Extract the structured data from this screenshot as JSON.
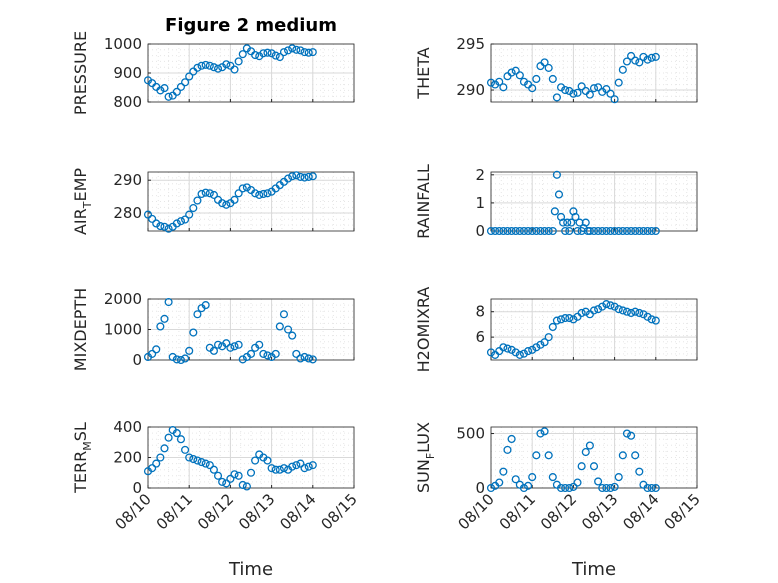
{
  "figure": {
    "title": "Figure 2 medium",
    "xlabel": "Time"
  },
  "colors": {
    "marker": "#0072BD",
    "axis": "#262626",
    "grid": "#d9d9d9"
  },
  "chart_data": [
    {
      "type": "scatter",
      "name": "PRESSURE",
      "ylabel": {
        "main": "PRESSURE",
        "sub": ""
      },
      "ylim": [
        800,
        1000
      ],
      "yticks": [
        "800",
        "900",
        "1000"
      ],
      "ytick_values": [
        800,
        900,
        1000
      ],
      "xticks": [],
      "xlim": [
        0,
        5
      ],
      "grid": true,
      "x": [
        0.0,
        0.1,
        0.2,
        0.3,
        0.4,
        0.5,
        0.6,
        0.7,
        0.8,
        0.9,
        1.0,
        1.1,
        1.2,
        1.3,
        1.4,
        1.5,
        1.6,
        1.7,
        1.8,
        1.9,
        2.0,
        2.1,
        2.2,
        2.3,
        2.4,
        2.5,
        2.6,
        2.7,
        2.8,
        2.9,
        3.0,
        3.1,
        3.2,
        3.3,
        3.4,
        3.5,
        3.6,
        3.7,
        3.8,
        3.9,
        4.0
      ],
      "y": [
        875,
        865,
        852,
        840,
        848,
        818,
        822,
        835,
        852,
        868,
        888,
        905,
        918,
        925,
        928,
        925,
        920,
        915,
        920,
        930,
        925,
        912,
        940,
        965,
        985,
        975,
        962,
        958,
        968,
        970,
        968,
        960,
        955,
        972,
        978,
        985,
        980,
        978,
        972,
        970,
        972
      ]
    },
    {
      "type": "scatter",
      "name": "THETA",
      "ylabel": {
        "main": "THETA",
        "sub": ""
      },
      "ylim": [
        288.7,
        295.0
      ],
      "yticks": [
        "290",
        "295"
      ],
      "ytick_values": [
        290,
        295
      ],
      "xticks": [],
      "xlim": [
        0,
        5
      ],
      "grid": true,
      "x": [
        0.0,
        0.1,
        0.2,
        0.3,
        0.4,
        0.5,
        0.6,
        0.7,
        0.8,
        0.9,
        1.0,
        1.1,
        1.2,
        1.3,
        1.4,
        1.5,
        1.6,
        1.7,
        1.8,
        1.9,
        2.0,
        2.1,
        2.2,
        2.3,
        2.4,
        2.5,
        2.6,
        2.7,
        2.8,
        2.9,
        3.0,
        3.1,
        3.2,
        3.3,
        3.4,
        3.5,
        3.6,
        3.7,
        3.8,
        3.9,
        4.0
      ],
      "y": [
        290.8,
        290.6,
        290.9,
        290.3,
        291.5,
        291.9,
        292.1,
        291.6,
        290.9,
        290.6,
        290.2,
        291.2,
        292.6,
        293.0,
        292.4,
        291.2,
        289.2,
        290.3,
        290.0,
        289.9,
        289.6,
        289.7,
        290.4,
        289.9,
        289.5,
        290.2,
        290.3,
        289.8,
        290.1,
        289.6,
        289.0,
        290.8,
        292.2,
        293.1,
        293.7,
        293.2,
        293.0,
        293.6,
        293.3,
        293.5,
        293.6
      ]
    },
    {
      "type": "scatter",
      "name": "AIR_TEMP",
      "ylabel": {
        "main": "AIR",
        "sub": "T",
        "rest": "EMP"
      },
      "ylim": [
        274.5,
        292.5
      ],
      "yticks": [
        "280",
        "290"
      ],
      "ytick_values": [
        280,
        290
      ],
      "xticks": [],
      "xlim": [
        0,
        5
      ],
      "grid": true,
      "x": [
        0.0,
        0.1,
        0.2,
        0.3,
        0.4,
        0.5,
        0.6,
        0.7,
        0.8,
        0.9,
        1.0,
        1.1,
        1.2,
        1.3,
        1.4,
        1.5,
        1.6,
        1.7,
        1.8,
        1.9,
        2.0,
        2.1,
        2.2,
        2.3,
        2.4,
        2.5,
        2.6,
        2.7,
        2.8,
        2.9,
        3.0,
        3.1,
        3.2,
        3.3,
        3.4,
        3.5,
        3.6,
        3.7,
        3.8,
        3.9,
        4.0
      ],
      "y": [
        279.5,
        278.2,
        276.8,
        276.0,
        275.8,
        275.2,
        275.8,
        276.8,
        277.5,
        278.0,
        279.5,
        281.5,
        283.8,
        285.8,
        286.2,
        286.0,
        285.5,
        284.0,
        283.0,
        282.5,
        283.0,
        284.0,
        286.0,
        287.5,
        287.8,
        287.0,
        286.0,
        285.5,
        285.8,
        286.0,
        286.5,
        287.5,
        288.5,
        289.5,
        290.5,
        291.2,
        291.5,
        291.0,
        290.8,
        291.0,
        291.2
      ]
    },
    {
      "type": "scatter",
      "name": "RAINFALL",
      "ylabel": {
        "main": "RAINFALL",
        "sub": ""
      },
      "ylim": [
        0,
        2.1
      ],
      "yticks": [
        "0",
        "1",
        "2"
      ],
      "ytick_values": [
        0,
        1,
        2
      ],
      "xticks": [],
      "xlim": [
        0,
        5
      ],
      "grid": true,
      "x": [
        0.0,
        0.1,
        0.2,
        0.3,
        0.4,
        0.5,
        0.6,
        0.7,
        0.8,
        0.9,
        1.0,
        1.1,
        1.2,
        1.3,
        1.4,
        1.5,
        1.55,
        1.6,
        1.65,
        1.7,
        1.75,
        1.8,
        1.85,
        1.9,
        1.95,
        2.0,
        2.05,
        2.1,
        2.15,
        2.2,
        2.25,
        2.3,
        2.35,
        2.4,
        2.5,
        2.6,
        2.7,
        2.8,
        2.9,
        3.0,
        3.1,
        3.2,
        3.3,
        3.4,
        3.5,
        3.6,
        3.7,
        3.8,
        3.9,
        4.0
      ],
      "y": [
        0,
        0,
        0,
        0,
        0,
        0,
        0,
        0,
        0,
        0,
        0,
        0,
        0,
        0,
        0,
        0,
        0.7,
        2.0,
        1.3,
        0.5,
        0.3,
        0,
        0.3,
        0,
        0.3,
        0.7,
        0.5,
        0,
        0.3,
        0,
        0.1,
        0.3,
        0,
        0,
        0,
        0,
        0,
        0,
        0,
        0,
        0,
        0,
        0,
        0,
        0,
        0,
        0,
        0,
        0,
        0
      ]
    },
    {
      "type": "scatter",
      "name": "MIXDEPTH",
      "ylabel": {
        "main": "MIXDEPTH",
        "sub": ""
      },
      "ylim": [
        0,
        2000
      ],
      "yticks": [
        "0",
        "1000",
        "2000"
      ],
      "ytick_values": [
        0,
        1000,
        2000
      ],
      "xticks": [],
      "xlim": [
        0,
        5
      ],
      "grid": true,
      "x": [
        0.0,
        0.1,
        0.2,
        0.3,
        0.4,
        0.5,
        0.6,
        0.7,
        0.8,
        0.9,
        1.0,
        1.1,
        1.2,
        1.3,
        1.4,
        1.5,
        1.6,
        1.7,
        1.8,
        1.9,
        2.0,
        2.1,
        2.2,
        2.3,
        2.4,
        2.5,
        2.6,
        2.7,
        2.8,
        2.9,
        3.0,
        3.1,
        3.2,
        3.3,
        3.4,
        3.5,
        3.6,
        3.7,
        3.8,
        3.9,
        4.0
      ],
      "y": [
        100,
        200,
        350,
        1100,
        1350,
        1900,
        100,
        20,
        0,
        50,
        300,
        900,
        1500,
        1700,
        1800,
        400,
        300,
        500,
        450,
        550,
        400,
        450,
        500,
        20,
        100,
        200,
        400,
        500,
        200,
        150,
        100,
        200,
        1100,
        1500,
        1000,
        800,
        200,
        50,
        100,
        50,
        20
      ]
    },
    {
      "type": "scatter",
      "name": "H2OMIXRA",
      "ylabel": {
        "main": "H2OMIXRA",
        "sub": ""
      },
      "ylim": [
        4.2,
        9.0
      ],
      "yticks": [
        "6",
        "8"
      ],
      "ytick_values": [
        6,
        8
      ],
      "xticks": [],
      "xlim": [
        0,
        5
      ],
      "grid": true,
      "x": [
        0.0,
        0.1,
        0.2,
        0.3,
        0.4,
        0.5,
        0.6,
        0.7,
        0.8,
        0.9,
        1.0,
        1.1,
        1.2,
        1.3,
        1.4,
        1.5,
        1.6,
        1.7,
        1.8,
        1.9,
        2.0,
        2.1,
        2.2,
        2.3,
        2.4,
        2.5,
        2.6,
        2.7,
        2.8,
        2.9,
        3.0,
        3.1,
        3.2,
        3.3,
        3.4,
        3.5,
        3.6,
        3.7,
        3.8,
        3.9,
        4.0
      ],
      "y": [
        4.8,
        4.6,
        4.9,
        5.2,
        5.1,
        5.0,
        4.8,
        4.6,
        4.7,
        4.9,
        5.0,
        5.2,
        5.4,
        5.6,
        6.0,
        6.8,
        7.3,
        7.4,
        7.5,
        7.5,
        7.4,
        7.6,
        7.9,
        8.0,
        7.8,
        8.1,
        8.2,
        8.4,
        8.6,
        8.5,
        8.4,
        8.2,
        8.1,
        8.0,
        7.9,
        8.0,
        7.9,
        7.8,
        7.6,
        7.4,
        7.3
      ]
    },
    {
      "type": "scatter",
      "name": "TERR_MSL",
      "ylabel": {
        "main": "TERR",
        "sub": "M",
        "rest": "SL"
      },
      "ylim": [
        0,
        400
      ],
      "yticks": [
        "0",
        "200",
        "400"
      ],
      "ytick_values": [
        0,
        200,
        400
      ],
      "xticks": [
        "08/10",
        "08/11",
        "08/12",
        "08/13",
        "08/14",
        "08/15"
      ],
      "xlim": [
        0,
        5
      ],
      "grid": true,
      "x": [
        0.0,
        0.1,
        0.2,
        0.3,
        0.4,
        0.5,
        0.6,
        0.7,
        0.8,
        0.9,
        1.0,
        1.1,
        1.2,
        1.3,
        1.4,
        1.5,
        1.6,
        1.7,
        1.8,
        1.9,
        2.0,
        2.1,
        2.2,
        2.3,
        2.4,
        2.5,
        2.6,
        2.7,
        2.8,
        2.9,
        3.0,
        3.1,
        3.2,
        3.3,
        3.4,
        3.5,
        3.6,
        3.7,
        3.8,
        3.9,
        4.0
      ],
      "y": [
        110,
        130,
        160,
        200,
        260,
        330,
        380,
        360,
        320,
        250,
        200,
        190,
        180,
        170,
        160,
        150,
        120,
        80,
        40,
        30,
        60,
        90,
        80,
        20,
        10,
        100,
        180,
        220,
        200,
        180,
        130,
        120,
        120,
        130,
        120,
        140,
        150,
        160,
        130,
        140,
        150
      ]
    },
    {
      "type": "scatter",
      "name": "SUN_FLUX",
      "ylabel": {
        "main": "SUN",
        "sub": "F",
        "rest": "LUX"
      },
      "ylim": [
        0,
        560
      ],
      "yticks": [
        "0",
        "500"
      ],
      "ytick_values": [
        0,
        500
      ],
      "xticks": [
        "08/10",
        "08/11",
        "08/12",
        "08/13",
        "08/14",
        "08/15"
      ],
      "xlim": [
        0,
        5
      ],
      "grid": true,
      "x": [
        0.0,
        0.1,
        0.2,
        0.3,
        0.4,
        0.5,
        0.6,
        0.7,
        0.8,
        0.9,
        1.0,
        1.1,
        1.2,
        1.3,
        1.4,
        1.5,
        1.6,
        1.7,
        1.8,
        1.9,
        2.0,
        2.1,
        2.2,
        2.3,
        2.4,
        2.5,
        2.6,
        2.7,
        2.8,
        2.9,
        3.0,
        3.1,
        3.2,
        3.3,
        3.4,
        3.5,
        3.6,
        3.7,
        3.8,
        3.9,
        4.0
      ],
      "y": [
        0,
        20,
        50,
        150,
        350,
        450,
        80,
        30,
        0,
        20,
        100,
        300,
        500,
        520,
        300,
        100,
        30,
        0,
        0,
        0,
        10,
        50,
        200,
        330,
        390,
        200,
        60,
        0,
        0,
        0,
        10,
        100,
        300,
        500,
        480,
        300,
        150,
        30,
        0,
        0,
        0
      ]
    }
  ]
}
